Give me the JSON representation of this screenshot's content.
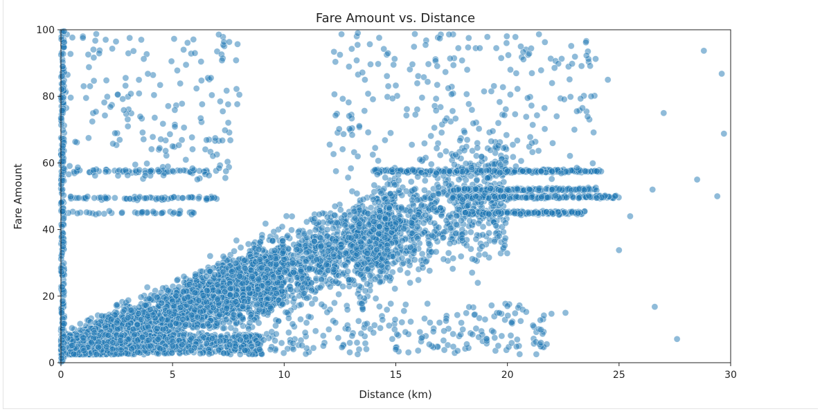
{
  "chart_data": {
    "type": "scatter",
    "title": "Fare Amount vs. Distance",
    "xlabel": "Distance (km)",
    "ylabel": "Fare Amount",
    "xlim": [
      0,
      30
    ],
    "ylim": [
      0,
      100
    ],
    "xticks": [
      "0",
      "5",
      "10",
      "15",
      "20",
      "25",
      "30"
    ],
    "yticks": [
      "0",
      "20",
      "40",
      "60",
      "80",
      "100"
    ],
    "grid": false,
    "legend": "none",
    "point_color": "#1f77b4",
    "point_alpha": 0.5,
    "series": [
      {
        "points_sample": [
          [
            0.5,
            5.2
          ],
          [
            1.0,
            7.5
          ],
          [
            1.5,
            9.0
          ],
          [
            2.0,
            10.5
          ],
          [
            2.5,
            12.0
          ],
          [
            3.0,
            13.5
          ],
          [
            4.0,
            16.0
          ],
          [
            5.0,
            18.5
          ],
          [
            6.0,
            21.0
          ],
          [
            7.0,
            23.5
          ],
          [
            8.0,
            26.0
          ],
          [
            9.0,
            28.5
          ],
          [
            10.0,
            31.0
          ],
          [
            11.0,
            33.0
          ],
          [
            12.0,
            35.5
          ],
          [
            13.0,
            37.5
          ],
          [
            14.0,
            40.0
          ],
          [
            15.0,
            42.0
          ],
          [
            16.0,
            44.5
          ],
          [
            17.0,
            46.5
          ],
          [
            18.0,
            49.0
          ],
          [
            19.0,
            51.0
          ],
          [
            20.0,
            52.0
          ],
          [
            21.0,
            52.0
          ],
          [
            22.0,
            52.0
          ],
          [
            20.0,
            57.5
          ],
          [
            22.0,
            57.5
          ],
          [
            23.5,
            57.5
          ],
          [
            24.0,
            57.5
          ],
          [
            20.0,
            45.0
          ],
          [
            22.0,
            45.0
          ],
          [
            24.0,
            49.5
          ],
          [
            0.8,
            49.5
          ],
          [
            2.0,
            49.5
          ],
          [
            4.0,
            57.5
          ],
          [
            3.0,
            71.0
          ],
          [
            5.0,
            65.0
          ],
          [
            6.0,
            93.0
          ],
          [
            3.6,
            97.0
          ],
          [
            12.5,
            92.5
          ],
          [
            13.3,
            99.0
          ],
          [
            17.8,
            94.5
          ],
          [
            18.2,
            88.0
          ],
          [
            19.5,
            94.5
          ],
          [
            20.6,
            95.0
          ],
          [
            22.0,
            84.0
          ],
          [
            22.9,
            89.8
          ],
          [
            28.8,
            93.7
          ],
          [
            29.6,
            86.8
          ],
          [
            29.7,
            68.8
          ],
          [
            27.6,
            7.1
          ],
          [
            26.6,
            16.8
          ],
          [
            22.6,
            15.0
          ],
          [
            20.0,
            17.0
          ],
          [
            19.0,
            13.0
          ],
          [
            21.5,
            6.0
          ],
          [
            18.0,
            10.0
          ],
          [
            16.5,
            5.5
          ],
          [
            15.0,
            4.0
          ],
          [
            14.0,
            9.0
          ],
          [
            12.0,
            10.0
          ],
          [
            11.0,
            12.0
          ],
          [
            25.0,
            33.8
          ],
          [
            25.5,
            44.0
          ],
          [
            26.5,
            52.0
          ],
          [
            28.5,
            55.0
          ],
          [
            29.4,
            50.0
          ],
          [
            27.0,
            75.0
          ],
          [
            24.5,
            85.0
          ],
          [
            23.0,
            70.0
          ]
        ]
      }
    ]
  }
}
